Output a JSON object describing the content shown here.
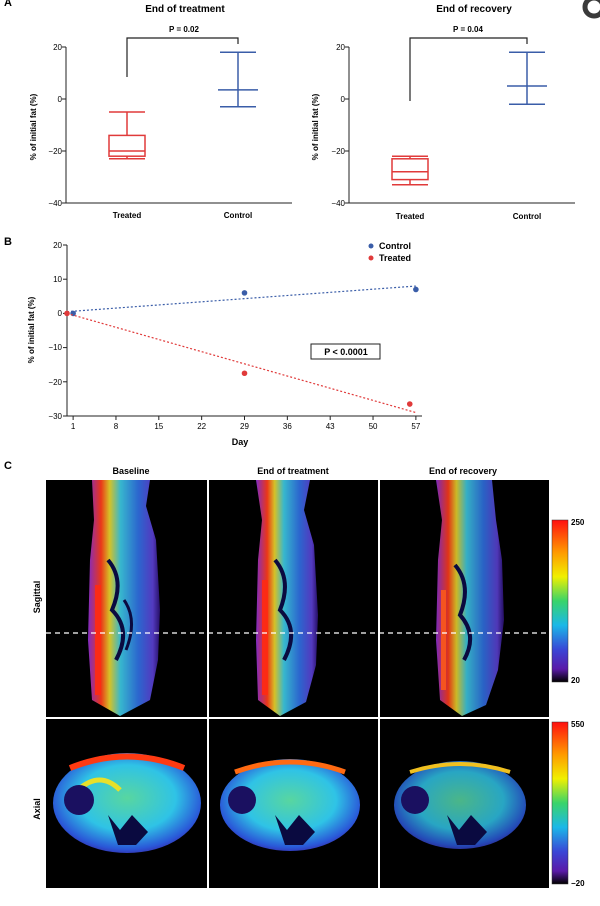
{
  "panel_a": {
    "label": "A",
    "left": {
      "title": "End of treatment",
      "p_value": "P = 0.02",
      "x_labels": [
        "Treated",
        "Control"
      ],
      "y_label": "% of initial fat (%)",
      "y_ticks": [
        "20",
        "0",
        "−20",
        "−40"
      ]
    },
    "right": {
      "title": "End of recovery",
      "p_value": "P = 0.04",
      "x_labels": [
        "Treated",
        "Control"
      ],
      "y_label": "% of initial fat (%)",
      "y_ticks": [
        "20",
        "0",
        "−20",
        "−40"
      ]
    }
  },
  "panel_b": {
    "label": "B",
    "y_label": "% of initial fat (%)",
    "x_label": "Day",
    "y_ticks": [
      "20",
      "10",
      "0",
      "−10",
      "−20",
      "−30"
    ],
    "x_ticks": [
      "1",
      "8",
      "15",
      "22",
      "29",
      "36",
      "43",
      "50",
      "57"
    ],
    "legend": [
      "Control",
      "Treated"
    ],
    "p_value": "P < 0.0001"
  },
  "panel_c": {
    "label": "C",
    "columns": [
      "Baseline",
      "End of treatment",
      "End of recovery"
    ],
    "rows": [
      "Sagittal",
      "Axial"
    ],
    "sagittal_scale": {
      "max": "250",
      "min": "20"
    },
    "axial_scale": {
      "max": "550",
      "min": "−20"
    }
  },
  "colors": {
    "control": "#3a5da8",
    "treated": "#e03a3a"
  },
  "chart_data": [
    {
      "type": "box",
      "title": "End of treatment",
      "ylabel": "% of initial fat (%)",
      "ylim": [
        -40,
        20
      ],
      "categories": [
        "Treated",
        "Control"
      ],
      "boxes": [
        {
          "name": "Treated",
          "min": -23,
          "q1": -22,
          "median": -20,
          "q3": -14,
          "max": -5
        },
        {
          "name": "Control",
          "min": -3,
          "median": 3.5,
          "max": 18
        }
      ],
      "annotation": "P = 0.02"
    },
    {
      "type": "box",
      "title": "End of recovery",
      "ylabel": "% of initial fat (%)",
      "ylim": [
        -40,
        20
      ],
      "categories": [
        "Treated",
        "Control"
      ],
      "boxes": [
        {
          "name": "Treated",
          "min": -33,
          "q1": -31,
          "median": -28,
          "q3": -23,
          "max": -22
        },
        {
          "name": "Control",
          "min": -2,
          "median": 5,
          "max": 18
        }
      ],
      "annotation": "P = 0.04"
    },
    {
      "type": "scatter",
      "xlabel": "Day",
      "ylabel": "% of initial fat (%)",
      "xlim": [
        0,
        58
      ],
      "ylim": [
        -30,
        20
      ],
      "series": [
        {
          "name": "Control",
          "x": [
            1,
            29,
            57
          ],
          "y": [
            0,
            6,
            7
          ],
          "trend": [
            [
              0,
              0.5
            ],
            [
              57,
              8
            ]
          ]
        },
        {
          "name": "Treated",
          "x": [
            0,
            29,
            56
          ],
          "y": [
            0,
            -17.5,
            -26.5
          ],
          "trend": [
            [
              0,
              0
            ],
            [
              57,
              -29
            ]
          ]
        }
      ],
      "annotation": "P < 0.0001"
    }
  ]
}
